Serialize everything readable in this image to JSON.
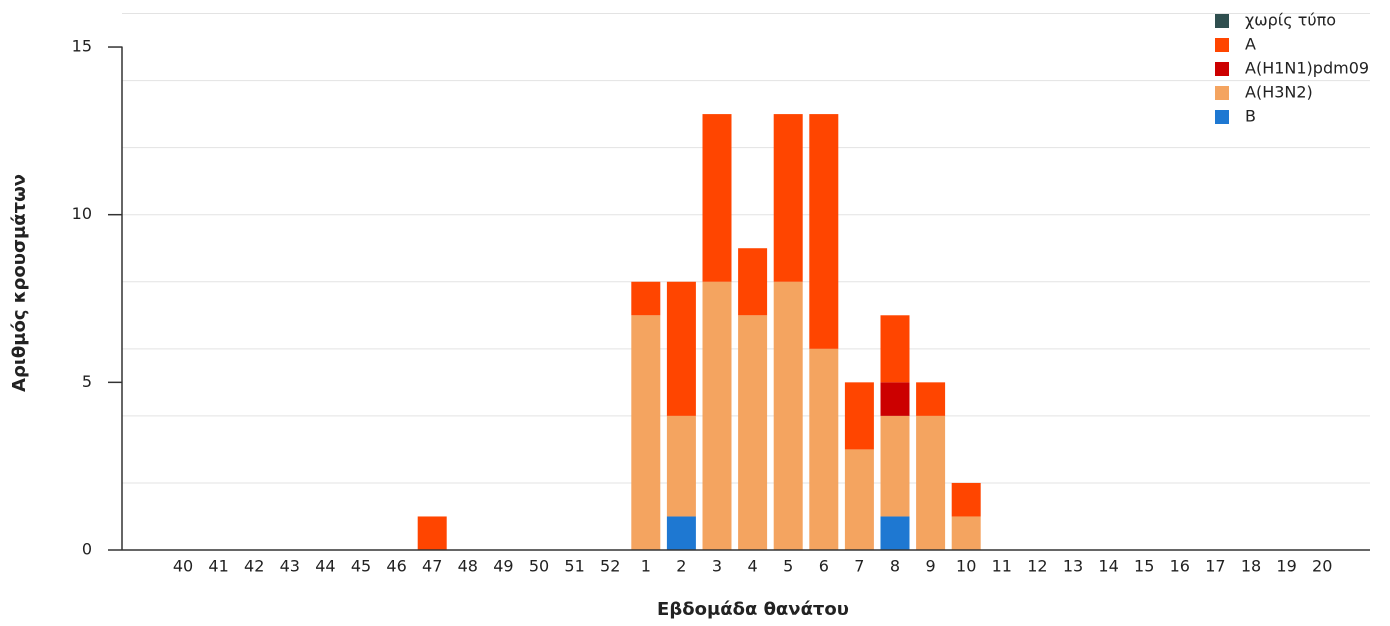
{
  "chart_data": {
    "type": "stacked_bar",
    "x_label": "Εβδομάδα θανάτου",
    "y_label": "Αριθμός κρουσμάτων",
    "categories": [
      "40",
      "41",
      "42",
      "43",
      "44",
      "45",
      "46",
      "47",
      "48",
      "49",
      "50",
      "51",
      "52",
      "1",
      "2",
      "3",
      "4",
      "5",
      "6",
      "7",
      "8",
      "9",
      "10",
      "11",
      "12",
      "13",
      "14",
      "15",
      "16",
      "17",
      "18",
      "19",
      "20"
    ],
    "series": [
      {
        "name": "χωρίς τύπο",
        "color": "#2f4f4f",
        "values": [
          0,
          0,
          0,
          0,
          0,
          0,
          0,
          0,
          0,
          0,
          0,
          0,
          0,
          0,
          0,
          0,
          0,
          0,
          0,
          0,
          0,
          0,
          0,
          0,
          0,
          0,
          0,
          0,
          0,
          0,
          0,
          0,
          0
        ]
      },
      {
        "name": "A",
        "color": "#ff4500",
        "values": [
          0,
          0,
          0,
          0,
          0,
          0,
          0,
          1,
          0,
          0,
          0,
          0,
          0,
          1,
          4,
          5,
          2,
          5,
          7,
          2,
          2,
          1,
          1,
          0,
          0,
          0,
          0,
          0,
          0,
          0,
          0,
          0,
          0
        ]
      },
      {
        "name": "A(H1N1)pdm09",
        "color": "#cc0000",
        "values": [
          0,
          0,
          0,
          0,
          0,
          0,
          0,
          0,
          0,
          0,
          0,
          0,
          0,
          0,
          0,
          0,
          0,
          0,
          0,
          0,
          1,
          0,
          0,
          0,
          0,
          0,
          0,
          0,
          0,
          0,
          0,
          0,
          0
        ]
      },
      {
        "name": "A(H3N2)",
        "color": "#f4a460",
        "values": [
          0,
          0,
          0,
          0,
          0,
          0,
          0,
          0,
          0,
          0,
          0,
          0,
          0,
          7,
          3,
          8,
          7,
          8,
          6,
          3,
          3,
          4,
          1,
          0,
          0,
          0,
          0,
          0,
          0,
          0,
          0,
          0,
          0
        ]
      },
      {
        "name": "B",
        "color": "#1e78d2",
        "values": [
          0,
          0,
          0,
          0,
          0,
          0,
          0,
          0,
          0,
          0,
          0,
          0,
          0,
          0,
          1,
          0,
          0,
          0,
          0,
          0,
          1,
          0,
          0,
          0,
          0,
          0,
          0,
          0,
          0,
          0,
          0,
          0,
          0
        ]
      }
    ],
    "ylim": [
      0,
      16
    ],
    "yticks": [
      0,
      5,
      10,
      15
    ],
    "ygrid": [
      2,
      4,
      6,
      8,
      10,
      12,
      14,
      16
    ],
    "grid": true,
    "legend": "top-right"
  }
}
